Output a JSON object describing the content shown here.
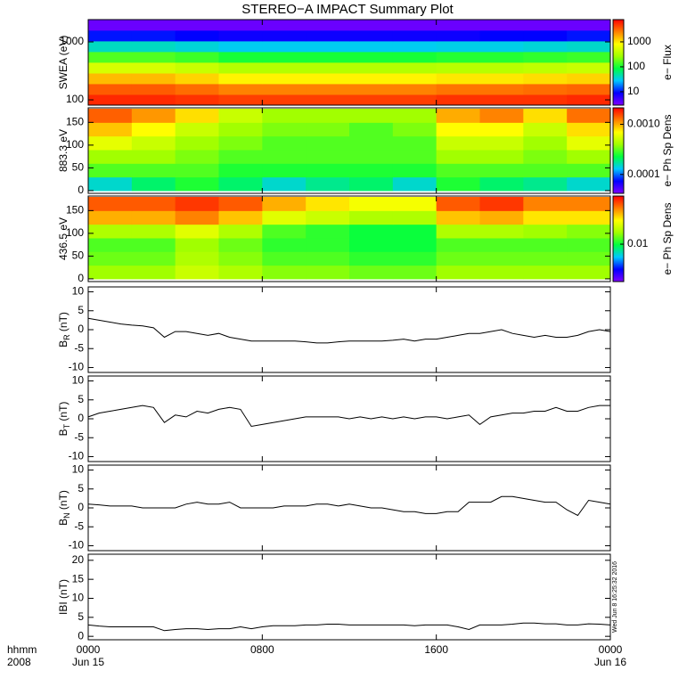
{
  "title": "STEREO−A IMPACT Summary Plot",
  "timestamp": "Wed Jun  8 16:25:32 2016",
  "x_axis": {
    "xlim": [
      0,
      24
    ],
    "xticks": [
      {
        "value": 0,
        "label": "0000"
      },
      {
        "value": 8,
        "label": "0800"
      },
      {
        "value": 16,
        "label": "1600"
      },
      {
        "value": 24,
        "label": "0000"
      }
    ],
    "date_labels": [
      {
        "value": 0,
        "label": "Jun 15"
      },
      {
        "value": 24,
        "label": "Jun 16"
      }
    ],
    "row_labels": [
      "hhmm",
      "2008"
    ]
  },
  "colormap": [
    "#7f00ff",
    "#0000ff",
    "#00c8ff",
    "#00ff40",
    "#a0ff00",
    "#ffff00",
    "#ff8000",
    "#ff0000"
  ],
  "chart_data": [
    {
      "type": "heatmap",
      "ylabel": "SWEA (eV)",
      "colorbar_label": "e− Flux",
      "ylog": true,
      "clog": true,
      "ylim": [
        81,
        2425
      ],
      "yticks": [
        100,
        1000
      ],
      "clim": [
        2.9,
        7800
      ],
      "cticks": [
        10,
        100,
        1000
      ],
      "xbins": [
        0,
        2,
        4,
        6,
        8,
        10,
        12,
        14,
        16,
        18,
        20,
        22,
        24
      ],
      "ybins": [
        81,
        124,
        190,
        290,
        445,
        680,
        1040,
        1590,
        2425
      ],
      "z": [
        [
          5500,
          5500,
          5000,
          4500,
          4500,
          4500,
          4500,
          4500,
          5000,
          5000,
          5000,
          5500
        ],
        [
          3500,
          3500,
          3000,
          2500,
          2500,
          2500,
          2500,
          2500,
          2800,
          2800,
          3000,
          3200
        ],
        [
          1500,
          1500,
          1200,
          900,
          900,
          900,
          900,
          900,
          1000,
          1000,
          1100,
          1200
        ],
        [
          500,
          500,
          420,
          330,
          330,
          330,
          330,
          330,
          350,
          350,
          380,
          420
        ],
        [
          150,
          150,
          130,
          100,
          100,
          100,
          100,
          100,
          110,
          110,
          120,
          130
        ],
        [
          40,
          40,
          35,
          30,
          30,
          30,
          30,
          30,
          32,
          32,
          35,
          38
        ],
        [
          10,
          10,
          9,
          8,
          8,
          8,
          8,
          8,
          8,
          9,
          9,
          10
        ],
        [
          3.5,
          3.5,
          3.5,
          3.5,
          3.5,
          3.5,
          3.5,
          3.5,
          3.5,
          3.5,
          3.5,
          3.5
        ]
      ]
    },
    {
      "type": "heatmap",
      "ylabel": "883.3 eV",
      "colorbar_label": "e− Ph Sp Dens",
      "ylog": false,
      "clog": true,
      "ylim": [
        -6,
        182
      ],
      "yticks": [
        0,
        50,
        100,
        150
      ],
      "clim": [
        4.2e-05,
        0.00213
      ],
      "cticks": [
        {
          "value": 0.0001,
          "label": "0.0001"
        },
        {
          "value": 0.001,
          "label": "0.0010"
        }
      ],
      "xbins": [
        0,
        2,
        4,
        6,
        8,
        10,
        12,
        14,
        16,
        18,
        20,
        22,
        24
      ],
      "ybins": [
        0,
        30,
        60,
        90,
        120,
        150,
        180
      ],
      "z": [
        [
          0.00015,
          0.0002,
          0.00025,
          0.0002,
          0.00015,
          0.00018,
          0.0002,
          0.00015,
          0.00025,
          0.0002,
          0.00018,
          0.00015
        ],
        [
          0.0003,
          0.0003,
          0.0003,
          0.00025,
          0.00025,
          0.00025,
          0.00025,
          0.00025,
          0.0003,
          0.0003,
          0.0003,
          0.0003
        ],
        [
          0.0004,
          0.0004,
          0.00035,
          0.0003,
          0.0003,
          0.0003,
          0.0003,
          0.0003,
          0.0004,
          0.0004,
          0.00035,
          0.0004
        ],
        [
          0.0006,
          0.0005,
          0.0004,
          0.00035,
          0.0003,
          0.0003,
          0.0003,
          0.0003,
          0.0005,
          0.0005,
          0.0004,
          0.0006
        ],
        [
          0.0009,
          0.0007,
          0.0005,
          0.0004,
          0.00035,
          0.00035,
          0.0003,
          0.00035,
          0.0007,
          0.0007,
          0.0005,
          0.0008
        ],
        [
          0.0014,
          0.0011,
          0.0008,
          0.0005,
          0.0004,
          0.0004,
          0.0004,
          0.0004,
          0.001,
          0.0012,
          0.0008,
          0.0013
        ]
      ]
    },
    {
      "type": "heatmap",
      "ylabel": "436.5 eV",
      "colorbar_label": "e− Ph Sp Dens",
      "ylog": false,
      "clog": true,
      "ylim": [
        -6,
        182
      ],
      "yticks": [
        0,
        50,
        100,
        150
      ],
      "clim": [
        0.0027,
        0.054
      ],
      "cticks": [
        0.01
      ],
      "xbins": [
        0,
        2,
        4,
        6,
        8,
        10,
        12,
        14,
        16,
        18,
        20,
        22,
        24
      ],
      "ybins": [
        0,
        30,
        60,
        90,
        120,
        150,
        180
      ],
      "z": [
        [
          0.015,
          0.015,
          0.018,
          0.016,
          0.014,
          0.014,
          0.013,
          0.013,
          0.015,
          0.015,
          0.015,
          0.015
        ],
        [
          0.013,
          0.013,
          0.016,
          0.014,
          0.012,
          0.012,
          0.011,
          0.011,
          0.013,
          0.013,
          0.013,
          0.013
        ],
        [
          0.012,
          0.012,
          0.015,
          0.013,
          0.011,
          0.011,
          0.01,
          0.01,
          0.012,
          0.012,
          0.012,
          0.012
        ],
        [
          0.016,
          0.016,
          0.02,
          0.016,
          0.012,
          0.011,
          0.01,
          0.01,
          0.016,
          0.016,
          0.015,
          0.014
        ],
        [
          0.03,
          0.03,
          0.035,
          0.028,
          0.02,
          0.018,
          0.016,
          0.016,
          0.028,
          0.03,
          0.025,
          0.025
        ],
        [
          0.04,
          0.04,
          0.045,
          0.04,
          0.03,
          0.025,
          0.022,
          0.022,
          0.04,
          0.045,
          0.035,
          0.035
        ]
      ]
    },
    {
      "type": "line",
      "ylabel": [
        "B",
        "R",
        " (nT)"
      ],
      "color": "#000000",
      "ylim": [
        -11.3,
        11.3
      ],
      "yticks": [
        -10,
        -5,
        0,
        5,
        10
      ],
      "x": [
        0,
        0.5,
        1,
        1.5,
        2,
        2.5,
        3,
        3.5,
        4,
        4.5,
        5,
        5.5,
        6,
        6.5,
        7,
        7.5,
        8,
        8.5,
        9,
        9.5,
        10,
        10.5,
        11,
        11.5,
        12,
        12.5,
        13,
        13.5,
        14,
        14.5,
        15,
        15.5,
        16,
        16.5,
        17,
        17.5,
        18,
        18.5,
        19,
        19.5,
        20,
        20.5,
        21,
        21.5,
        22,
        22.5,
        23,
        23.5,
        24
      ],
      "values": [
        3,
        2.5,
        2,
        1.5,
        1.2,
        1,
        0.5,
        -2,
        -0.5,
        -0.5,
        -1,
        -1.5,
        -1,
        -2,
        -2.5,
        -3,
        -3,
        -3,
        -3,
        -3,
        -3.2,
        -3.5,
        -3.5,
        -3.2,
        -3,
        -3,
        -3,
        -3,
        -2.8,
        -2.5,
        -3,
        -2.5,
        -2.5,
        -2,
        -1.5,
        -1,
        -1,
        -0.5,
        0,
        -1,
        -1.5,
        -2,
        -1.5,
        -2,
        -2,
        -1.5,
        -0.5,
        0,
        -0.5
      ]
    },
    {
      "type": "line",
      "ylabel": [
        "B",
        "T",
        " (nT)"
      ],
      "color": "#000000",
      "ylim": [
        -11.3,
        11.3
      ],
      "yticks": [
        -10,
        -5,
        0,
        5,
        10
      ],
      "x": [
        0,
        0.5,
        1,
        1.5,
        2,
        2.5,
        3,
        3.5,
        4,
        4.5,
        5,
        5.5,
        6,
        6.5,
        7,
        7.5,
        8,
        8.5,
        9,
        9.5,
        10,
        10.5,
        11,
        11.5,
        12,
        12.5,
        13,
        13.5,
        14,
        14.5,
        15,
        15.5,
        16,
        16.5,
        17,
        17.5,
        18,
        18.5,
        19,
        19.5,
        20,
        20.5,
        21,
        21.5,
        22,
        22.5,
        23,
        23.5,
        24
      ],
      "values": [
        0.5,
        1.5,
        2,
        2.5,
        3,
        3.5,
        3,
        -1,
        1,
        0.5,
        2,
        1.5,
        2.5,
        3,
        2.5,
        -2,
        -1.5,
        -1,
        -0.5,
        0,
        0.5,
        0.5,
        0.5,
        0.5,
        0,
        0.5,
        0,
        0.5,
        0,
        0.5,
        0,
        0.5,
        0.5,
        0,
        0.5,
        1,
        -1.5,
        0.5,
        1,
        1.5,
        1.5,
        2,
        2,
        3,
        2,
        2,
        3,
        3.5,
        3.5
      ]
    },
    {
      "type": "line",
      "ylabel": [
        "B",
        "N",
        " (nT)"
      ],
      "color": "#000000",
      "ylim": [
        -11.3,
        11.3
      ],
      "yticks": [
        -10,
        -5,
        0,
        5,
        10
      ],
      "x": [
        0,
        0.5,
        1,
        1.5,
        2,
        2.5,
        3,
        3.5,
        4,
        4.5,
        5,
        5.5,
        6,
        6.5,
        7,
        7.5,
        8,
        8.5,
        9,
        9.5,
        10,
        10.5,
        11,
        11.5,
        12,
        12.5,
        13,
        13.5,
        14,
        14.5,
        15,
        15.5,
        16,
        16.5,
        17,
        17.5,
        18,
        18.5,
        19,
        19.5,
        20,
        20.5,
        21,
        21.5,
        22,
        22.5,
        23,
        23.5,
        24
      ],
      "values": [
        1,
        0.8,
        0.5,
        0.5,
        0.5,
        0,
        0,
        0,
        0,
        1,
        1.5,
        1,
        1,
        1.5,
        0,
        0,
        0,
        0,
        0.5,
        0.5,
        0.5,
        1,
        1,
        0.5,
        1,
        0.5,
        0,
        0,
        -0.5,
        -1,
        -1,
        -1.5,
        -1.5,
        -1,
        -1,
        1.5,
        1.5,
        1.5,
        3,
        3,
        2.5,
        2,
        1.5,
        1.5,
        -0.5,
        -2,
        2,
        1.5,
        1
      ]
    },
    {
      "type": "line",
      "ylabel": "IBI (nT)",
      "color": "#000000",
      "ylim": [
        -0.9,
        21.6
      ],
      "yticks": [
        0,
        5,
        10,
        15,
        20
      ],
      "x": [
        0,
        0.5,
        1,
        1.5,
        2,
        2.5,
        3,
        3.5,
        4,
        4.5,
        5,
        5.5,
        6,
        6.5,
        7,
        7.5,
        8,
        8.5,
        9,
        9.5,
        10,
        10.5,
        11,
        11.5,
        12,
        12.5,
        13,
        13.5,
        14,
        14.5,
        15,
        15.5,
        16,
        16.5,
        17,
        17.5,
        18,
        18.5,
        19,
        19.5,
        20,
        20.5,
        21,
        21.5,
        22,
        22.5,
        23,
        23.5,
        24
      ],
      "values": [
        3,
        2.7,
        2.5,
        2.5,
        2.5,
        2.5,
        2.5,
        1.5,
        1.8,
        2,
        2,
        1.8,
        2,
        2,
        2.5,
        2,
        2.5,
        2.8,
        2.8,
        2.8,
        3,
        3,
        3.2,
        3.2,
        3,
        3,
        3,
        3,
        3,
        3,
        2.8,
        3,
        3,
        3,
        2.5,
        1.8,
        3,
        3,
        3,
        3.2,
        3.5,
        3.5,
        3.3,
        3.3,
        3,
        3,
        3.3,
        3.2,
        3
      ]
    }
  ]
}
